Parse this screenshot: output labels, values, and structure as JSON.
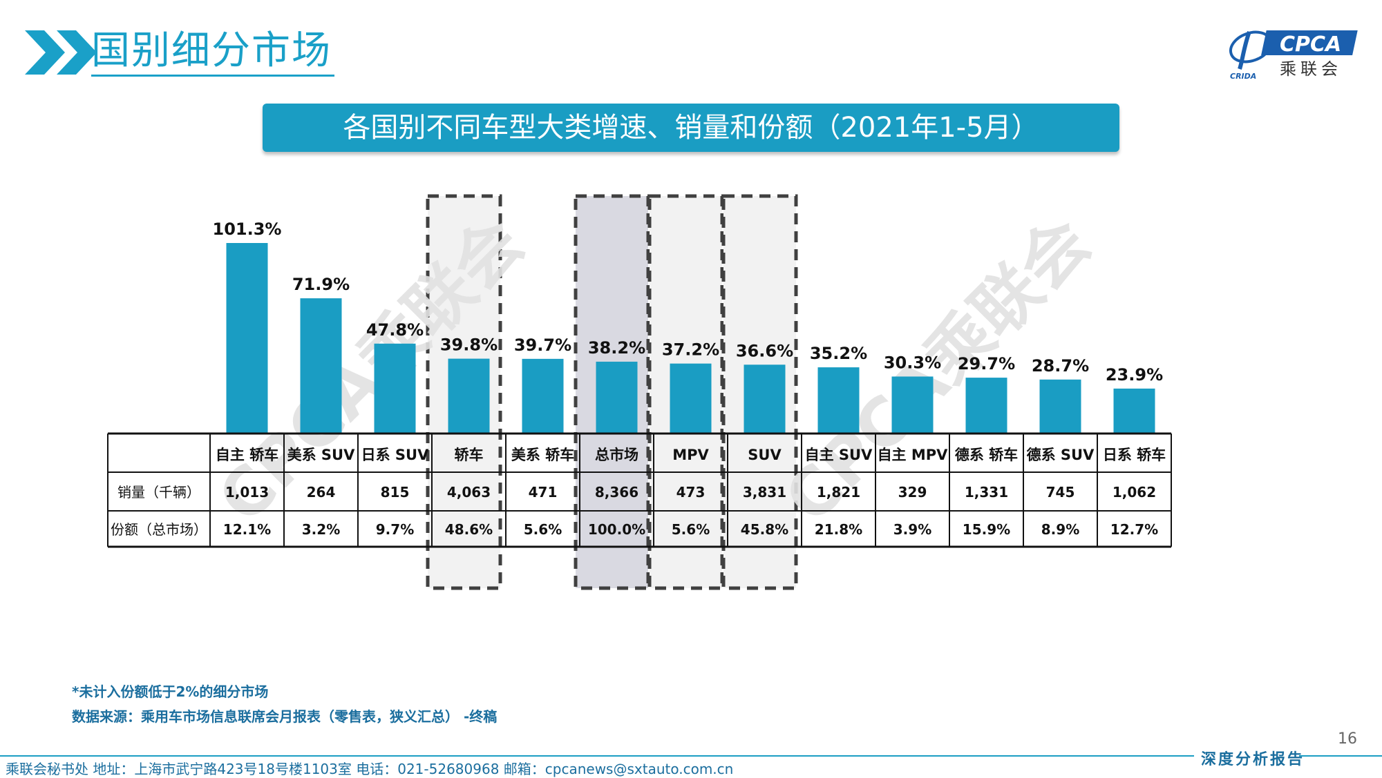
{
  "header": {
    "title": "国别细分市场"
  },
  "logo": {
    "brand": "CPCA",
    "cn": "乘联会",
    "small": "CRIDA"
  },
  "banner": {
    "title": "各国别不同车型大类增速、销量和份额（2021年1-5月）"
  },
  "watermark": "CPCA乘联会",
  "colors": {
    "bar": "#1a9dc3",
    "banner": "#1a9dc3",
    "accent": "#1aa0c8",
    "highlight_fill_light": "#f2f2f2",
    "highlight_fill_dark": "#d9d9e1",
    "dash_border": "#404040"
  },
  "chart_data": {
    "type": "bar",
    "categories": [
      "自主 轿车",
      "美系 SUV",
      "日系 SUV",
      "轿车",
      "美系 轿车",
      "总市场",
      "MPV",
      "SUV",
      "自主 SUV",
      "自主 MPV",
      "德系 轿车",
      "德系 SUV",
      "日系 轿车"
    ],
    "values": [
      101.3,
      71.9,
      47.8,
      39.8,
      39.7,
      38.2,
      37.2,
      36.6,
      35.2,
      30.3,
      29.7,
      28.7,
      23.9
    ],
    "value_labels": [
      "101.3%",
      "71.9%",
      "47.8%",
      "39.8%",
      "39.7%",
      "38.2%",
      "37.2%",
      "36.6%",
      "35.2%",
      "30.3%",
      "29.7%",
      "28.7%",
      "23.9%"
    ],
    "unit": "%",
    "ylim": [
      0,
      105
    ],
    "highlighted": [
      "轿车",
      "总市场",
      "MPV",
      "SUV"
    ],
    "table": {
      "rows": [
        {
          "label": "销量（千辆）",
          "values": [
            "1,013",
            "264",
            "815",
            "4,063",
            "471",
            "8,366",
            "473",
            "3,831",
            "1,821",
            "329",
            "1,331",
            "745",
            "1,062"
          ]
        },
        {
          "label": "份额（总市场）",
          "values": [
            "12.1%",
            "3.2%",
            "9.7%",
            "48.6%",
            "5.6%",
            "100.0%",
            "5.6%",
            "45.8%",
            "21.8%",
            "3.9%",
            "15.9%",
            "8.9%",
            "12.7%"
          ]
        }
      ]
    }
  },
  "notes": {
    "note1": "*未计入份额低于2%的细分市场",
    "note2": "数据来源：乘用车市场信息联席会月报表（零售表，狭义汇总） -终稿"
  },
  "page_number": "16",
  "footer": {
    "tag": "深度分析报告",
    "text": "乘联会秘书处   地址：上海市武宁路423号18号楼1103室   电话：021-52680968   邮箱：cpcanews@sxtauto.com.cn"
  }
}
